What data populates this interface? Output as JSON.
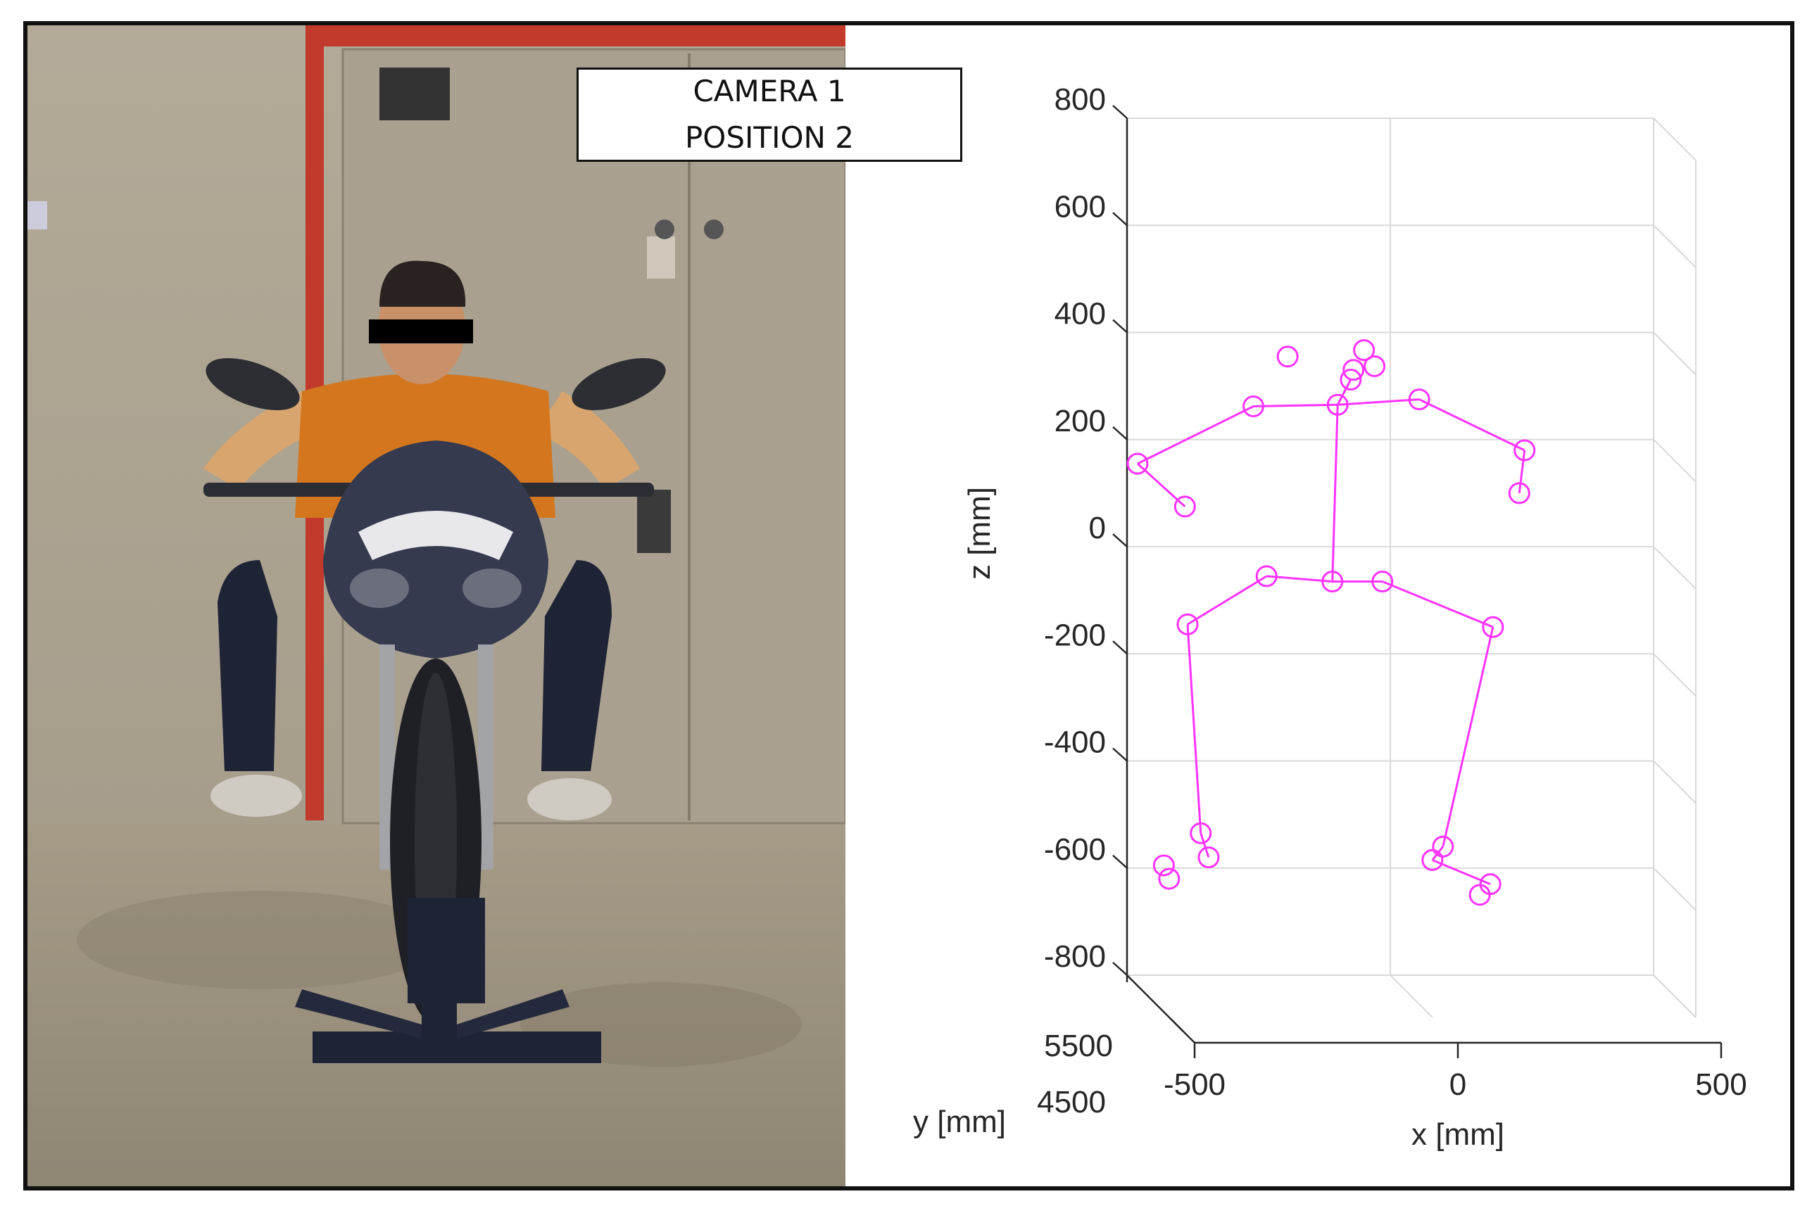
{
  "label_box": {
    "line1": "CAMERA 1",
    "line2": "POSITION 2"
  },
  "colors": {
    "skeleton": "#ff33ff",
    "grid": "#d9d9d9",
    "axis": "#262626",
    "frame": "#111111"
  },
  "photo": {
    "description_icon": "motorcycle-rider-photo",
    "note": ""
  },
  "chart_data": {
    "type": "scatter",
    "projection": "3d",
    "xlabel": "x [mm]",
    "ylabel": "y [mm]",
    "zlabel": "z [mm]",
    "xlim": [
      -500,
      500
    ],
    "ylim": [
      4500,
      5500
    ],
    "zlim": [
      -800,
      800
    ],
    "x_ticks": [
      "-500",
      "0",
      "500"
    ],
    "y_ticks": [
      "4500",
      "5500"
    ],
    "z_ticks": [
      "800",
      "600",
      "400",
      "200",
      "0",
      "-200",
      "-400",
      "-600",
      "-800"
    ],
    "grid": true,
    "joints": [
      {
        "id": "head_top_l",
        "x": -195,
        "z": 355
      },
      {
        "id": "head_top_r",
        "x": -50,
        "z": 367
      },
      {
        "id": "eye_l",
        "x": -70,
        "z": 330
      },
      {
        "id": "eye_r",
        "x": -30,
        "z": 337
      },
      {
        "id": "nose",
        "x": -75,
        "z": 312
      },
      {
        "id": "neck",
        "x": -100,
        "z": 265
      },
      {
        "id": "l_shoulder",
        "x": -260,
        "z": 262
      },
      {
        "id": "r_shoulder",
        "x": 55,
        "z": 275
      },
      {
        "id": "l_elbow",
        "x": -480,
        "z": 155
      },
      {
        "id": "l_wrist",
        "x": -390,
        "z": 75
      },
      {
        "id": "r_elbow",
        "x": 255,
        "z": 180
      },
      {
        "id": "r_wrist",
        "x": 245,
        "z": 100
      },
      {
        "id": "mid_hip",
        "x": -110,
        "z": -65
      },
      {
        "id": "l_hip",
        "x": -235,
        "z": -55
      },
      {
        "id": "r_hip",
        "x": -15,
        "z": -65
      },
      {
        "id": "l_knee",
        "x": -385,
        "z": -145
      },
      {
        "id": "r_knee",
        "x": 195,
        "z": -150
      },
      {
        "id": "l_ankle",
        "x": -360,
        "z": -535
      },
      {
        "id": "r_ankle",
        "x": 100,
        "z": -560
      },
      {
        "id": "l_heel",
        "x": -345,
        "z": -580
      },
      {
        "id": "l_toe",
        "x": -430,
        "z": -595
      },
      {
        "id": "l_small_toe",
        "x": -420,
        "z": -620
      },
      {
        "id": "r_heel",
        "x": 80,
        "z": -585
      },
      {
        "id": "r_toe",
        "x": 190,
        "z": -630
      },
      {
        "id": "r_small_toe",
        "x": 170,
        "z": -650
      }
    ],
    "bones": [
      [
        "neck",
        "mid_hip"
      ],
      [
        "neck",
        "l_shoulder"
      ],
      [
        "l_shoulder",
        "l_elbow"
      ],
      [
        "l_elbow",
        "l_wrist"
      ],
      [
        "neck",
        "r_shoulder"
      ],
      [
        "r_shoulder",
        "r_elbow"
      ],
      [
        "r_elbow",
        "r_wrist"
      ],
      [
        "neck",
        "nose"
      ],
      [
        "mid_hip",
        "l_hip"
      ],
      [
        "l_hip",
        "l_knee"
      ],
      [
        "l_knee",
        "l_ankle"
      ],
      [
        "l_ankle",
        "l_heel"
      ],
      [
        "mid_hip",
        "r_hip"
      ],
      [
        "r_hip",
        "r_knee"
      ],
      [
        "r_knee",
        "r_ankle"
      ],
      [
        "r_ankle",
        "r_heel"
      ],
      [
        "r_heel",
        "r_toe"
      ]
    ]
  }
}
